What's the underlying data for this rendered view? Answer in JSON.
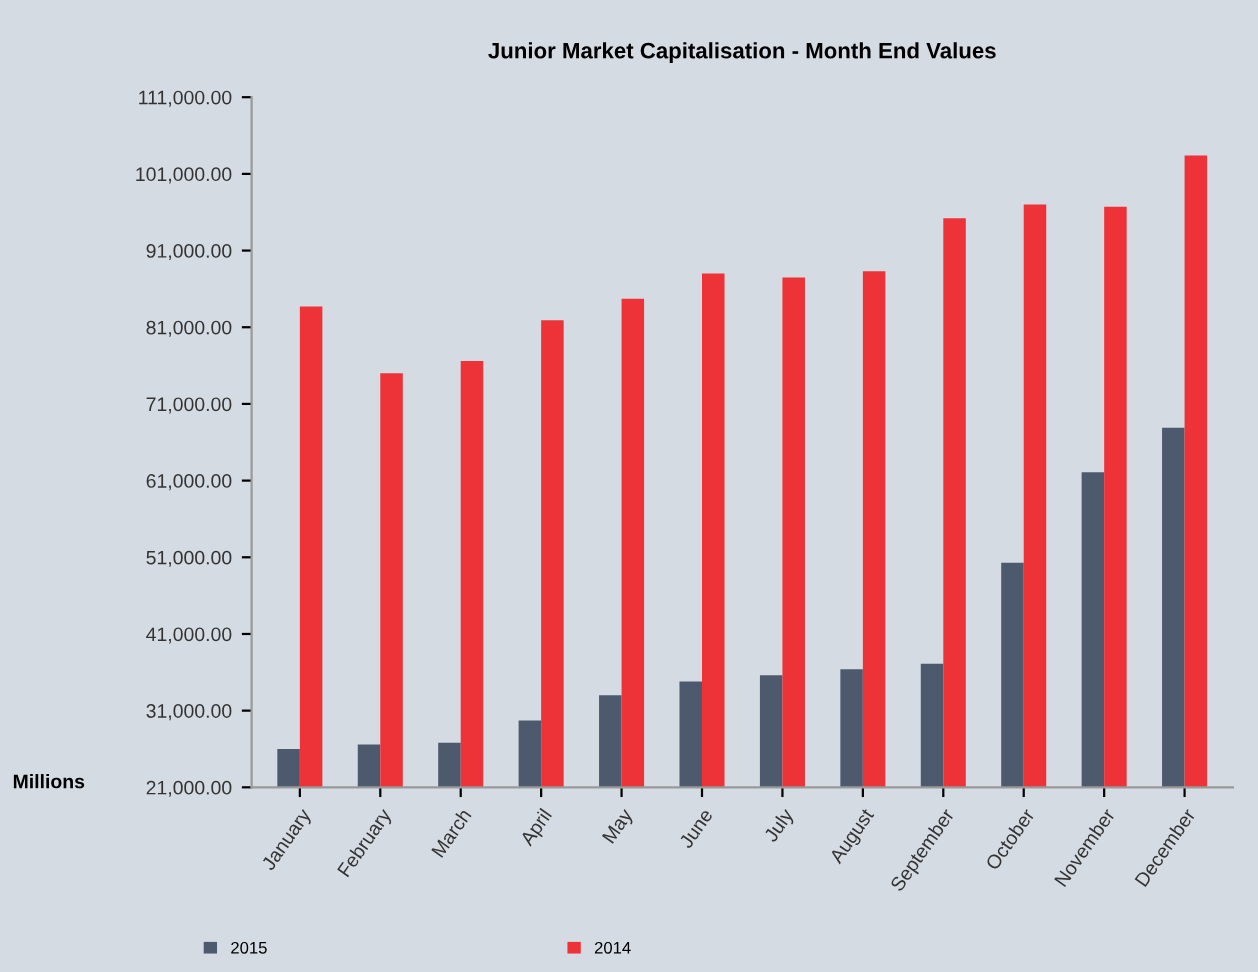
{
  "chart_data": {
    "type": "bar",
    "title": "Junior Market Capitalisation - Month End Values",
    "ylabel": "Millions",
    "categories": [
      "January",
      "February",
      "March",
      "April",
      "May",
      "June",
      "July",
      "August",
      "September",
      "October",
      "November",
      "December"
    ],
    "series": [
      {
        "name": "2015",
        "color": "#4d5a6e",
        "values": [
          26000,
          26600,
          26800,
          29700,
          33000,
          34800,
          35600,
          36400,
          37100,
          50300,
          62100,
          67900
        ]
      },
      {
        "name": "2014",
        "color": "#ee3338",
        "values": [
          83700,
          75000,
          76600,
          81900,
          84700,
          88000,
          87500,
          88300,
          95200,
          97000,
          96700,
          103400
        ]
      }
    ],
    "ylim": [
      21000,
      111000
    ],
    "yticks": [
      {
        "value": 21000,
        "label": "21,000.00"
      },
      {
        "value": 31000,
        "label": "31,000.00"
      },
      {
        "value": 41000,
        "label": "41,000.00"
      },
      {
        "value": 51000,
        "label": "51,000.00"
      },
      {
        "value": 61000,
        "label": "61,000.00"
      },
      {
        "value": 71000,
        "label": "71,000.00"
      },
      {
        "value": 81000,
        "label": "81,000.00"
      },
      {
        "value": 91000,
        "label": "91,000.00"
      },
      {
        "value": 101000,
        "label": "101,000.00"
      },
      {
        "value": 111000,
        "label": "111,000.00"
      }
    ],
    "grid": false,
    "legend": "bottom left"
  }
}
